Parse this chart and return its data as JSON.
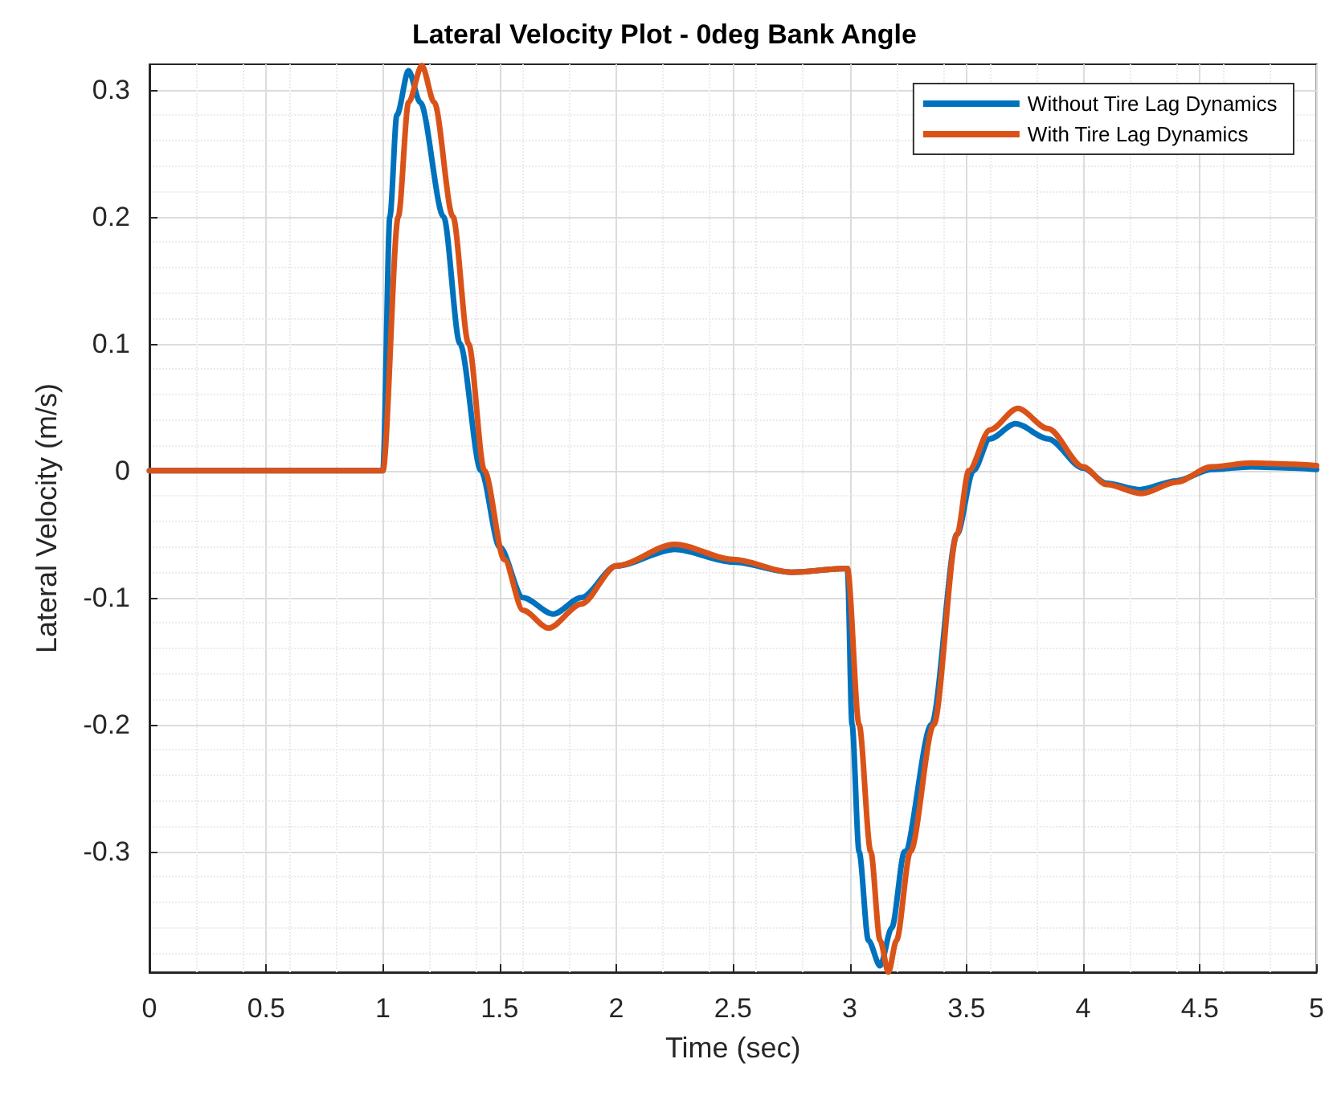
{
  "chart_data": {
    "type": "line",
    "title": "Lateral Velocity Plot - 0deg Bank Angle",
    "xlabel": "Time (sec)",
    "ylabel": "Lateral Velocity (m/s)",
    "xlim": [
      0,
      5
    ],
    "xticks": [
      0,
      0.5,
      1,
      1.5,
      2,
      2.5,
      3,
      3.5,
      4,
      4.5,
      5
    ],
    "ylim": [
      -0.395,
      0.32
    ],
    "yticks": [
      -0.3,
      -0.2,
      -0.1,
      0,
      0.1,
      0.2,
      0.3
    ],
    "grid": true,
    "legend": "top right",
    "marker": "none",
    "line_style": "solid",
    "series": [
      {
        "name": "Without Tire Lag Dynamics",
        "color": "#0072bd",
        "x": [
          0,
          1,
          1.03,
          1.06,
          1.11,
          1.16,
          1.26,
          1.33,
          1.42,
          1.5,
          1.6,
          1.73,
          1.85,
          2.0,
          2.25,
          2.5,
          2.75,
          2.99,
          3.01,
          3.04,
          3.08,
          3.13,
          3.18,
          3.235,
          3.35,
          3.46,
          3.53,
          3.6,
          3.71,
          3.85,
          4.0,
          4.1,
          4.24,
          4.4,
          4.55,
          4.72,
          4.9,
          5
        ],
        "values": [
          0,
          0,
          0.2,
          0.28,
          0.315,
          0.29,
          0.2,
          0.1,
          0,
          -0.06,
          -0.1,
          -0.113,
          -0.1,
          -0.075,
          -0.062,
          -0.072,
          -0.08,
          -0.077,
          -0.2,
          -0.3,
          -0.37,
          -0.39,
          -0.36,
          -0.3,
          -0.2,
          -0.05,
          0,
          0.025,
          0.037,
          0.025,
          0.002,
          -0.01,
          -0.015,
          -0.008,
          0.001,
          0.003,
          0.002,
          0.001
        ]
      },
      {
        "name": "With Tire Lag Dynamics",
        "color": "#d95319",
        "x": [
          0,
          1,
          1.066,
          1.11,
          1.167,
          1.22,
          1.3,
          1.367,
          1.435,
          1.52,
          1.6,
          1.71,
          1.85,
          2.0,
          2.25,
          2.5,
          2.75,
          2.99,
          3.04,
          3.09,
          3.13,
          3.166,
          3.2,
          3.26,
          3.36,
          3.46,
          3.51,
          3.6,
          3.72,
          3.85,
          4.0,
          4.1,
          4.25,
          4.4,
          4.55,
          4.72,
          4.9,
          5
        ],
        "values": [
          0,
          0,
          0.2,
          0.29,
          0.319,
          0.29,
          0.2,
          0.1,
          0,
          -0.07,
          -0.11,
          -0.124,
          -0.105,
          -0.075,
          -0.058,
          -0.07,
          -0.08,
          -0.077,
          -0.2,
          -0.3,
          -0.37,
          -0.395,
          -0.37,
          -0.3,
          -0.2,
          -0.05,
          0,
          0.032,
          0.049,
          0.033,
          0.003,
          -0.011,
          -0.018,
          -0.009,
          0.003,
          0.006,
          0.005,
          0.004
        ]
      }
    ]
  }
}
